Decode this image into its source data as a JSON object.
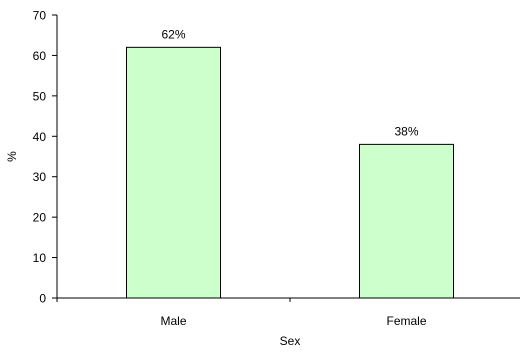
{
  "chart_data": {
    "type": "bar",
    "categories": [
      "Male",
      "Female"
    ],
    "values": [
      62,
      38
    ],
    "data_labels": [
      "62%",
      "38%"
    ],
    "xlabel": "Sex",
    "ylabel": "%",
    "ylim": [
      0,
      70
    ],
    "yticks": [
      0,
      10,
      20,
      30,
      40,
      50,
      60,
      70
    ],
    "grid": false,
    "legend": "none",
    "colors": {
      "bar_fill": "#ccffcc",
      "bar_stroke": "#000000",
      "axis": "#000000"
    }
  }
}
